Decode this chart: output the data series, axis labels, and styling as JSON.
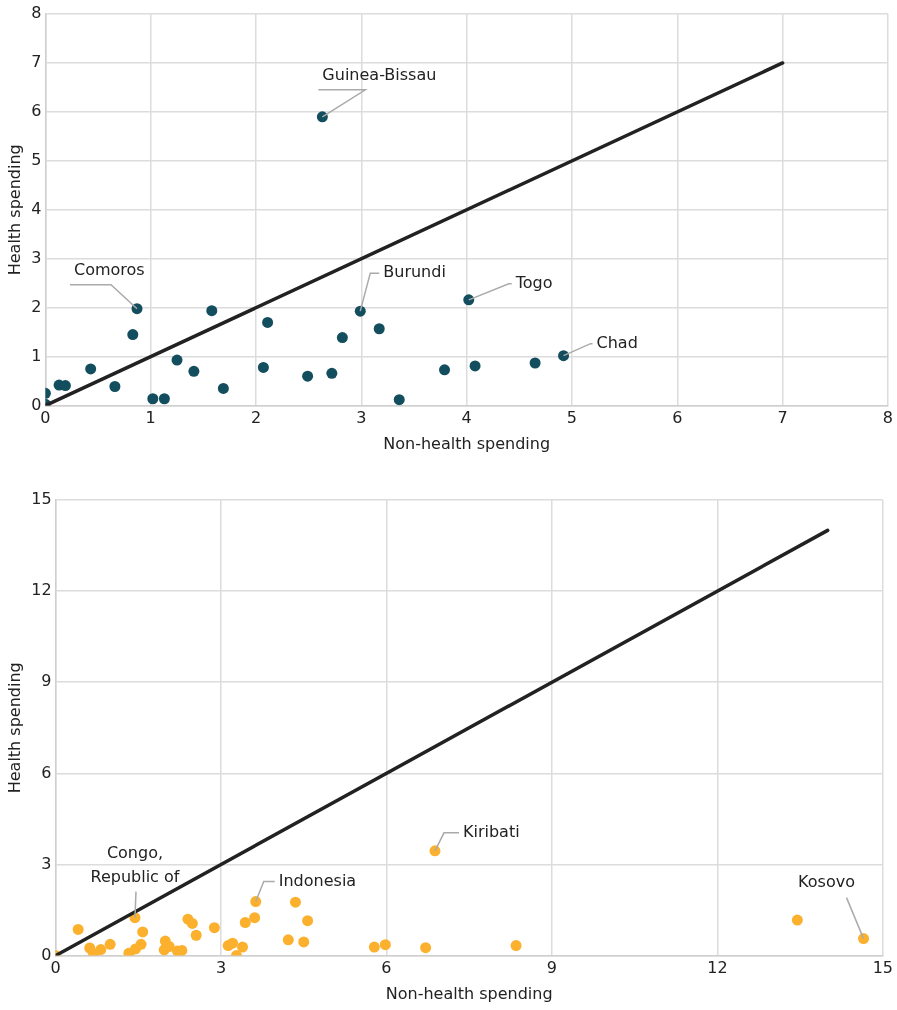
{
  "chart_data": [
    {
      "type": "scatter",
      "xlabel": "Non-health spending",
      "ylabel": "Health spending",
      "xlim": [
        0,
        8
      ],
      "xticks": [
        0,
        1,
        2,
        3,
        4,
        5,
        6,
        7,
        8
      ],
      "ylim": [
        0,
        8
      ],
      "yticks": [
        0,
        1,
        2,
        3,
        4,
        5,
        6,
        7,
        8
      ],
      "grid": true,
      "series": [
        {
          "type": "scatter",
          "marker": "circle",
          "color": "#134e5e",
          "x": [
            0,
            0,
            0.13,
            0.19,
            0.43,
            0.66,
            0.83,
            0.87,
            1.02,
            1.13,
            1.25,
            1.41,
            1.58,
            1.69,
            2.07,
            2.11,
            2.49,
            2.72,
            2.82,
            2.99,
            3.17,
            3.36,
            3.79,
            4.02,
            4.08,
            4.65,
            4.92,
            2.63
          ],
          "values": [
            0.25,
            0.03,
            0.42,
            0.41,
            0.75,
            0.39,
            1.45,
            1.98,
            0.14,
            0.14,
            0.93,
            0.7,
            1.94,
            0.35,
            0.78,
            1.7,
            0.6,
            0.66,
            1.39,
            1.93,
            1.57,
            0.12,
            0.73,
            2.16,
            0.81,
            0.87,
            1.02,
            5.9
          ]
        },
        {
          "type": "line",
          "marker": "none",
          "color": "#222222",
          "x": [
            0,
            7
          ],
          "values": [
            0,
            7
          ]
        }
      ],
      "annotations": [
        {
          "text": "Guinea-Bissau",
          "x": 2.63,
          "y": 5.9
        },
        {
          "text": "Comoros",
          "x": 0.87,
          "y": 1.98
        },
        {
          "text": "Burundi",
          "x": 2.99,
          "y": 1.93
        },
        {
          "text": "Togo",
          "x": 4.02,
          "y": 2.16
        },
        {
          "text": "Chad",
          "x": 4.92,
          "y": 1.02
        }
      ]
    },
    {
      "type": "scatter",
      "xlabel": "Non-health spending",
      "ylabel": "Health spending",
      "xlim": [
        0,
        15
      ],
      "xticks": [
        0,
        3,
        6,
        9,
        12,
        15
      ],
      "ylim": [
        0,
        15
      ],
      "yticks": [
        0,
        3,
        6,
        9,
        12,
        15
      ],
      "grid": true,
      "series": [
        {
          "type": "scatter",
          "marker": "circle",
          "color": "#fbb12e",
          "x": [
            0,
            0.41,
            0.62,
            0.69,
            0.82,
            0.99,
            1.33,
            1.45,
            1.44,
            1.55,
            1.58,
            1.97,
            1.99,
            2.06,
            2.21,
            2.29,
            2.4,
            2.48,
            2.55,
            2.88,
            3.13,
            3.21,
            3.28,
            3.39,
            3.44,
            3.61,
            3.63,
            4.22,
            4.35,
            4.5,
            4.57,
            5.78,
            5.98,
            6.71,
            6.88,
            8.35,
            13.45,
            14.65
          ],
          "values": [
            0,
            0.86,
            0.25,
            0.06,
            0.2,
            0.37,
            0.08,
            0.22,
            1.25,
            0.37,
            0.78,
            0.19,
            0.48,
            0.3,
            0.15,
            0.17,
            1.2,
            1.06,
            0.67,
            0.92,
            0.33,
            0.41,
            0,
            0.28,
            1.09,
            1.25,
            1.78,
            0.52,
            1.76,
            0.45,
            1.15,
            0.28,
            0.36,
            0.26,
            3.45,
            0.33,
            1.17,
            0.56
          ]
        },
        {
          "type": "line",
          "marker": "none",
          "color": "#222222",
          "x": [
            0,
            14
          ],
          "values": [
            0,
            14
          ]
        }
      ],
      "annotations": [
        {
          "text": "Congo, Republic of",
          "x": 1.44,
          "y": 1.25
        },
        {
          "text": "Indonesia",
          "x": 3.63,
          "y": 1.78
        },
        {
          "text": "Kiribati",
          "x": 6.88,
          "y": 3.45
        },
        {
          "text": "Kosovo",
          "x": 14.65,
          "y": 0.56
        }
      ]
    }
  ]
}
